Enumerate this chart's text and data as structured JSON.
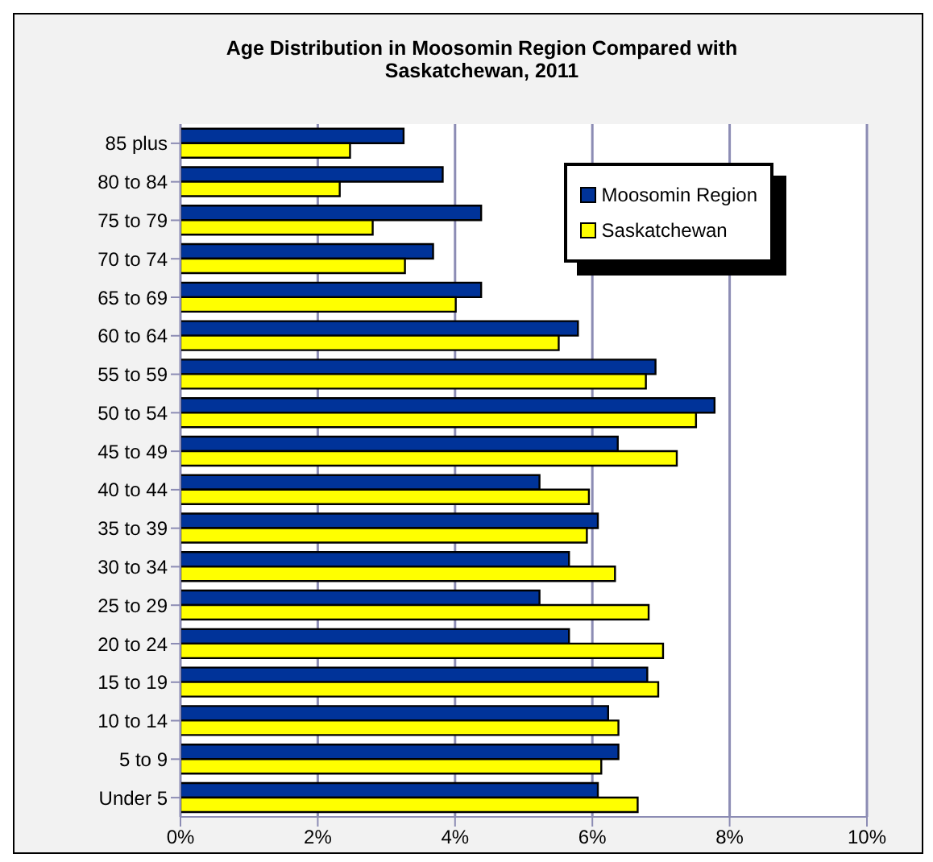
{
  "chart_data": {
    "type": "bar",
    "orientation": "horizontal",
    "title": "Age Distribution in Moosomin Region Compared with Saskatchewan, 2011",
    "categories": [
      "85 plus",
      "80 to 84",
      "75 to 79",
      "70 to 74",
      "65 to 69",
      "60 to 64",
      "55 to 59",
      "50 to 54",
      "45 to 49",
      "40 to 44",
      "35 to 39",
      "30 to 34",
      "25 to 29",
      "20 to 24",
      "15 to 19",
      "10 to 14",
      "5 to 9",
      "Under 5"
    ],
    "series": [
      {
        "name": "Moosomin Region",
        "color": "#003399",
        "values": [
          3.25,
          3.82,
          4.38,
          3.68,
          4.38,
          5.79,
          6.92,
          7.78,
          6.37,
          5.23,
          6.08,
          5.66,
          5.23,
          5.66,
          6.8,
          6.23,
          6.38,
          6.08
        ]
      },
      {
        "name": "Saskatchewan",
        "color": "#ffff00",
        "values": [
          2.47,
          2.32,
          2.8,
          3.27,
          4.01,
          5.51,
          6.78,
          7.51,
          7.23,
          5.95,
          5.92,
          6.33,
          6.82,
          7.03,
          6.96,
          6.38,
          6.13,
          6.66
        ]
      }
    ],
    "xlim": [
      0,
      10
    ],
    "xticks": [
      {
        "value": 0,
        "label": "0%"
      },
      {
        "value": 2,
        "label": "2%"
      },
      {
        "value": 4,
        "label": "4%"
      },
      {
        "value": 6,
        "label": "6%"
      },
      {
        "value": 8,
        "label": "8%"
      },
      {
        "value": 10,
        "label": "10%"
      }
    ],
    "grid": "x",
    "legend": "top right"
  }
}
